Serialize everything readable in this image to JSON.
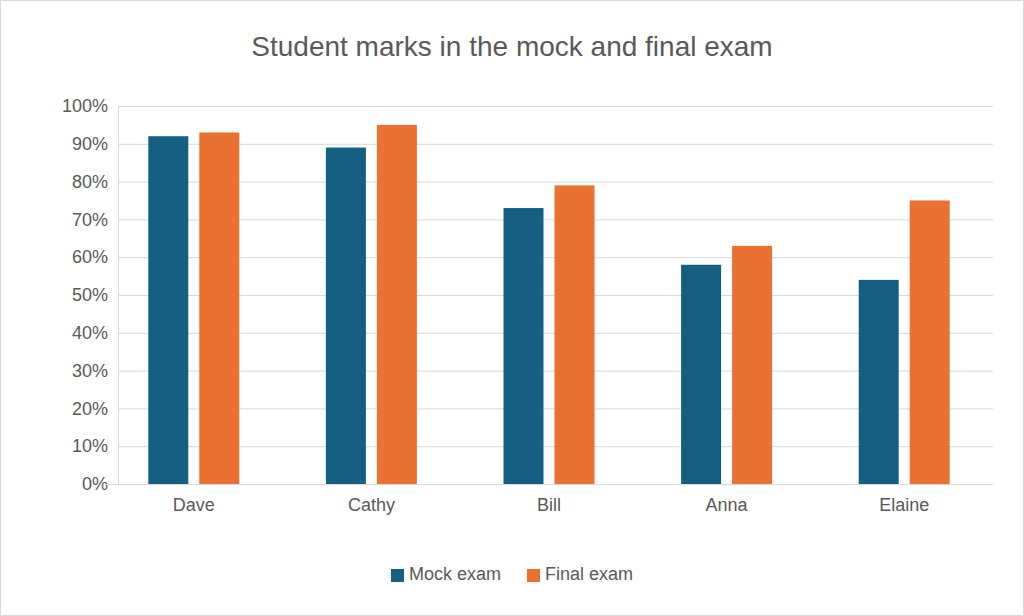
{
  "chart_data": {
    "type": "bar",
    "title": "Student marks in the mock and final exam",
    "categories": [
      "Dave",
      "Cathy",
      "Bill",
      "Anna",
      "Elaine"
    ],
    "series": [
      {
        "name": "Mock exam",
        "color": "#156082",
        "values": [
          92,
          89,
          73,
          58,
          54
        ]
      },
      {
        "name": "Final exam",
        "color": "#e97132",
        "values": [
          93,
          95,
          79,
          63,
          75
        ]
      }
    ],
    "ylim": [
      0,
      100
    ],
    "yticks": [
      {
        "value": 0,
        "label": "0%"
      },
      {
        "value": 10,
        "label": "10%"
      },
      {
        "value": 20,
        "label": "20%"
      },
      {
        "value": 30,
        "label": "30%"
      },
      {
        "value": 40,
        "label": "40%"
      },
      {
        "value": 50,
        "label": "50%"
      },
      {
        "value": 60,
        "label": "60%"
      },
      {
        "value": 70,
        "label": "70%"
      },
      {
        "value": 80,
        "label": "80%"
      },
      {
        "value": 90,
        "label": "90%"
      },
      {
        "value": 100,
        "label": "100%"
      }
    ],
    "grid": true,
    "legend": "bottom"
  }
}
